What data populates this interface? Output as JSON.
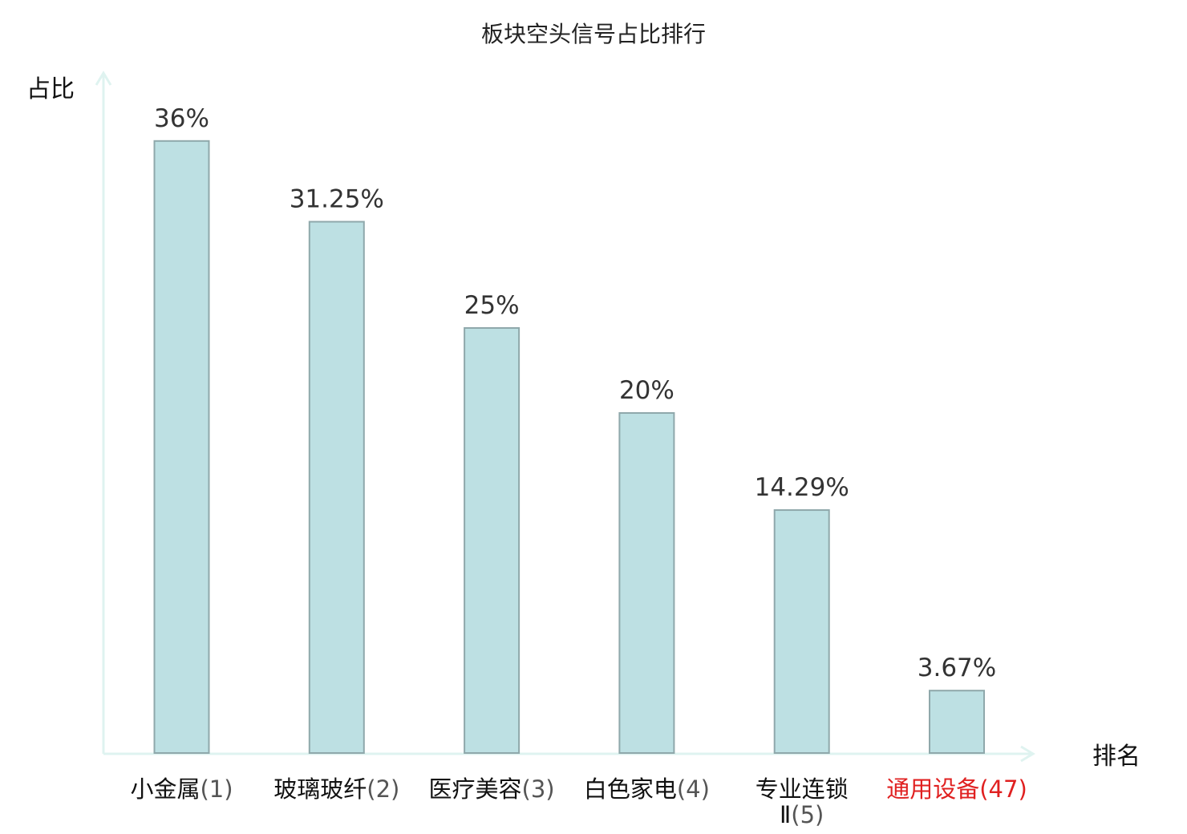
{
  "chart_data": {
    "type": "bar",
    "title": "板块空头信号占比排行",
    "ylabel": "占比",
    "xlabel": "排名",
    "categories": [
      {
        "name": "小金属",
        "rank": "(1)",
        "highlight": false
      },
      {
        "name": "玻璃玻纤",
        "rank": "(2)",
        "highlight": false
      },
      {
        "name": "医疗美容",
        "rank": "(3)",
        "highlight": false
      },
      {
        "name": "白色家电",
        "rank": "(4)",
        "highlight": false
      },
      {
        "name": "专业连锁Ⅱ",
        "rank": "(5)",
        "highlight": false
      },
      {
        "name": "通用设备",
        "rank": "(47)",
        "highlight": true
      }
    ],
    "values": [
      36,
      31.25,
      25,
      20,
      14.29,
      3.67
    ],
    "value_labels": [
      "36%",
      "31.25%",
      "25%",
      "20%",
      "14.29%",
      "3.67%"
    ],
    "ylim": [
      0,
      40
    ],
    "grid": false,
    "colors": {
      "bar_fill": "#bde0e3",
      "bar_stroke": "#8fa8ab",
      "axis": "#dff3f0",
      "label_text": "#111111",
      "highlight_text": "#e02020",
      "rank_text": "#555555"
    }
  }
}
